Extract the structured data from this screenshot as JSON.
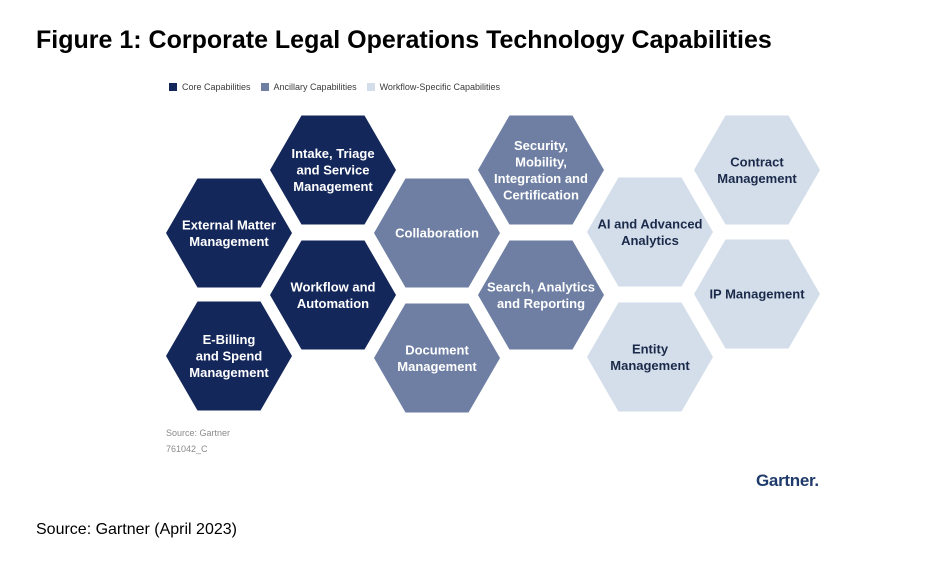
{
  "title": "Figure 1: Corporate Legal Operations Technology Capabilities",
  "colors": {
    "core": "#14275a",
    "ancillary": "#6e7fa3",
    "workflow": "#d3deea",
    "text_light": "#ffffff",
    "text_dark": "#1b2a4a"
  },
  "legend": [
    {
      "label": "Core Capabilities",
      "category": "core"
    },
    {
      "label": "Ancillary Capabilities",
      "category": "ancillary"
    },
    {
      "label": "Workflow-Specific Capabilities",
      "category": "workflow"
    }
  ],
  "capabilities": [
    {
      "label": "External Matter\nManagement",
      "category": "core",
      "name": "hex-external-matter-management"
    },
    {
      "label": "E-Billing\nand Spend\nManagement",
      "category": "core",
      "name": "hex-e-billing-and-spend-management"
    },
    {
      "label": "Intake, Triage\nand Service\nManagement",
      "category": "core",
      "name": "hex-intake-triage-service-management"
    },
    {
      "label": "Workflow and\nAutomation",
      "category": "core",
      "name": "hex-workflow-and-automation"
    },
    {
      "label": "Collaboration",
      "category": "ancillary",
      "name": "hex-collaboration"
    },
    {
      "label": "Document\nManagement",
      "category": "ancillary",
      "name": "hex-document-management"
    },
    {
      "label": "Security,\nMobility,\nIntegration and\nCertification",
      "category": "ancillary",
      "name": "hex-security-mobility-integration-certification"
    },
    {
      "label": "Search, Analytics\nand Reporting",
      "category": "ancillary",
      "name": "hex-search-analytics-reporting"
    },
    {
      "label": "AI and Advanced\nAnalytics",
      "category": "workflow",
      "name": "hex-ai-and-advanced-analytics"
    },
    {
      "label": "Entity\nManagement",
      "category": "workflow",
      "name": "hex-entity-management"
    },
    {
      "label": "Contract\nManagement",
      "category": "workflow",
      "name": "hex-contract-management"
    },
    {
      "label": "IP Management",
      "category": "workflow",
      "name": "hex-ip-management"
    }
  ],
  "source_small": "Source: Gartner",
  "figure_code": "761042_C",
  "brand": "Gartner.",
  "caption": "Source: Gartner (April 2023)"
}
